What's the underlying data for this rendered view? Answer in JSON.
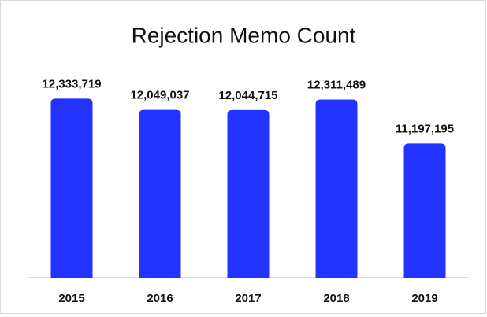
{
  "chart_data": {
    "type": "bar",
    "title": "Rejection Memo Count",
    "categories": [
      "2015",
      "2016",
      "2017",
      "2018",
      "2019"
    ],
    "values": [
      12333719,
      12049037,
      12044715,
      12311489,
      11197195
    ],
    "value_labels": [
      "12,333,719",
      "12,049,037",
      "12,044,715",
      "12,311,489",
      "11,197,195"
    ],
    "color": "#2233ff",
    "ylim": [
      7800000,
      12500000
    ]
  }
}
